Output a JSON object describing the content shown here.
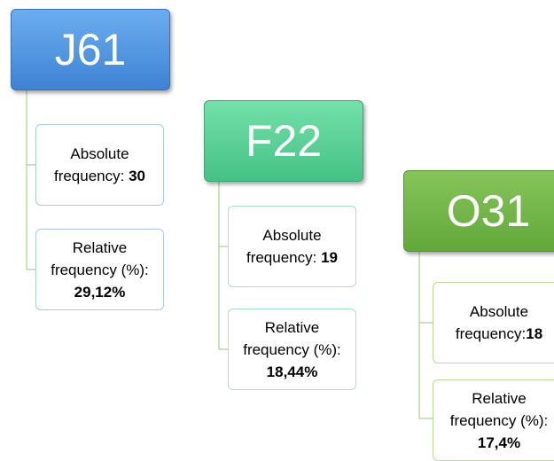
{
  "nodes": [
    {
      "label": "J61",
      "items": [
        {
          "text": "Absolute frequency:",
          "value": "30"
        },
        {
          "text": "Relative frequency (%):",
          "value": "29,12%"
        }
      ]
    },
    {
      "label": "F22",
      "items": [
        {
          "text": "Absolute frequency:",
          "value": "19"
        },
        {
          "text": "Relative frequency (%):",
          "value": "18,44%"
        }
      ]
    },
    {
      "label": "O31",
      "items": [
        {
          "text": "Absolute frequency:",
          "value": "18"
        },
        {
          "text": "Relative frequency (%):",
          "value": "17,4%"
        }
      ]
    }
  ]
}
